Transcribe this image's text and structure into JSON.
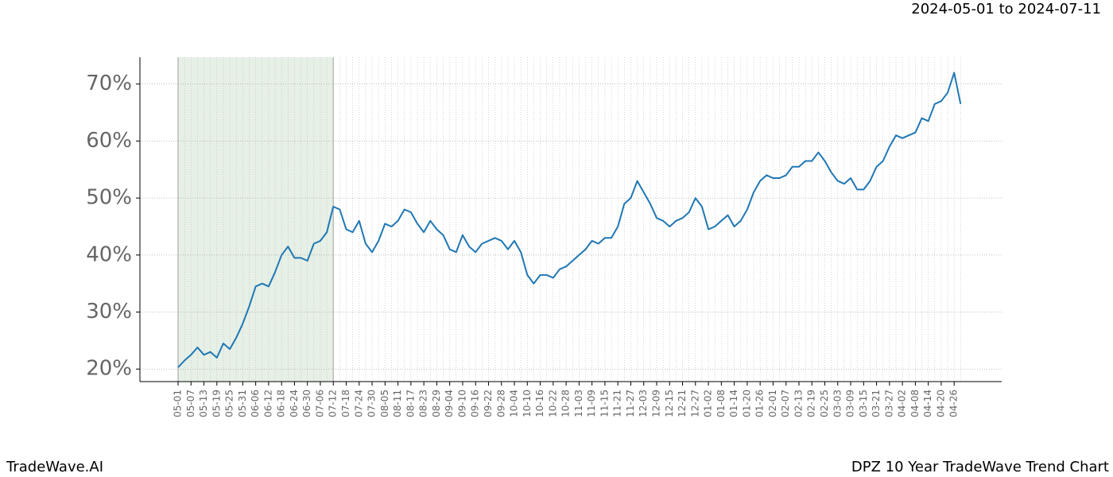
{
  "chart_data": {
    "type": "line",
    "subtitle": "2024-05-01 to 2024-07-11",
    "footer_left": "TradeWave.AI",
    "footer_right": "DPZ 10 Year TradeWave Trend Chart",
    "categories": [
      "05-01",
      null,
      "05-07",
      null,
      "05-13",
      null,
      "05-19",
      null,
      "05-25",
      null,
      "05-31",
      null,
      "06-06",
      null,
      "06-12",
      null,
      "06-18",
      null,
      "06-24",
      null,
      "06-30",
      null,
      "07-06",
      null,
      "07-12",
      null,
      "07-18",
      null,
      "07-24",
      null,
      "07-30",
      null,
      "08-05",
      null,
      "08-11",
      null,
      "08-17",
      null,
      "08-23",
      null,
      "08-29",
      null,
      "09-04",
      null,
      "09-10",
      null,
      "09-16",
      null,
      "09-22",
      null,
      "09-28",
      null,
      "10-04",
      null,
      "10-10",
      null,
      "10-16",
      null,
      "10-22",
      null,
      "10-28",
      null,
      "11-03",
      null,
      "11-09",
      null,
      "11-15",
      null,
      "11-21",
      null,
      "11-27",
      null,
      "12-03",
      null,
      "12-09",
      null,
      "12-15",
      null,
      "12-21",
      null,
      "12-27",
      null,
      "01-02",
      null,
      "01-08",
      null,
      "01-14",
      null,
      "01-20",
      null,
      "01-26",
      null,
      "02-01",
      null,
      "02-07",
      null,
      "02-13",
      null,
      "02-19",
      null,
      "02-25",
      null,
      "03-03",
      null,
      "03-09",
      null,
      "03-15",
      null,
      "03-21",
      null,
      "03-27",
      null,
      "04-02",
      null,
      "04-08",
      null,
      "04-14",
      null,
      "04-20",
      null,
      "04-26",
      null
    ],
    "series": [
      {
        "color": "#1f77b4",
        "values": [
          20.3,
          21.5,
          22.5,
          23.8,
          22.5,
          23.0,
          22.0,
          24.5,
          23.5,
          25.5,
          28.0,
          31.0,
          34.5,
          35.0,
          34.5,
          37.0,
          40.0,
          41.5,
          39.5,
          39.5,
          39.0,
          42.0,
          42.5,
          44.0,
          48.5,
          48.0,
          44.5,
          44.0,
          46.0,
          42.0,
          40.5,
          42.5,
          45.5,
          45.0,
          46.0,
          48.0,
          47.5,
          45.5,
          44.0,
          46.0,
          44.5,
          43.5,
          41.0,
          40.5,
          43.5,
          41.5,
          40.5,
          42.0,
          42.5,
          43.0,
          42.5,
          41.0,
          42.5,
          40.5,
          36.5,
          35.0,
          36.5,
          36.5,
          36.0,
          37.5,
          38.0,
          39.0,
          40.0,
          41.0,
          42.5,
          42.0,
          43.0,
          43.0,
          45.0,
          49.0,
          50.0,
          53.0,
          51.0,
          49.0,
          46.5,
          46.0,
          45.0,
          46.0,
          46.5,
          47.5,
          50.0,
          48.5,
          44.5,
          45.0,
          46.0,
          47.0,
          45.0,
          46.0,
          48.0,
          51.0,
          53.0,
          54.0,
          53.5,
          53.5,
          54.0,
          55.5,
          55.5,
          56.5,
          56.5,
          58.0,
          56.5,
          54.5,
          53.0,
          52.5,
          53.5,
          51.5,
          51.5,
          53.0,
          55.5,
          56.5,
          59.0,
          61.0,
          60.5,
          61.0,
          61.5,
          64.0,
          63.5,
          66.5,
          67.0,
          68.5,
          72.0,
          66.5
        ]
      }
    ],
    "shaded_span": [
      0,
      24
    ],
    "shade_color": "#e6f0e6",
    "ylim": [
      17.8,
      74.7
    ],
    "yticks": [
      {
        "value": 20,
        "label": "20%"
      },
      {
        "value": 30,
        "label": "30%"
      },
      {
        "value": 40,
        "label": "40%"
      },
      {
        "value": 50,
        "label": "50%"
      },
      {
        "value": 60,
        "label": "60%"
      },
      {
        "value": 70,
        "label": "70%"
      }
    ],
    "grid": true
  }
}
